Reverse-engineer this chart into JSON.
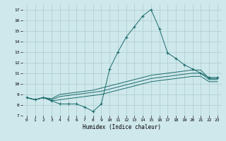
{
  "title": "",
  "xlabel": "Humidex (Indice chaleur)",
  "ylabel": "",
  "bg_color": "#cfe8ec",
  "grid_color": "#aacccc",
  "line_color": "#1a6b6b",
  "xlim": [
    -0.5,
    23.5
  ],
  "ylim": [
    7,
    17.5
  ],
  "xticks": [
    0,
    1,
    2,
    3,
    4,
    5,
    6,
    7,
    8,
    9,
    10,
    11,
    12,
    13,
    14,
    15,
    16,
    17,
    18,
    19,
    20,
    21,
    22,
    23
  ],
  "yticks": [
    7,
    8,
    9,
    10,
    11,
    12,
    13,
    14,
    15,
    16,
    17
  ],
  "lines": [
    {
      "x": [
        0,
        1,
        2,
        3,
        4,
        5,
        6,
        7,
        8,
        9,
        10,
        11,
        12,
        13,
        14,
        15,
        16,
        17,
        18,
        19,
        20,
        21,
        22,
        23
      ],
      "y": [
        8.7,
        8.5,
        8.7,
        8.4,
        8.1,
        8.1,
        8.1,
        7.8,
        7.4,
        8.1,
        11.4,
        13.0,
        14.4,
        15.4,
        16.4,
        17.0,
        15.2,
        12.9,
        12.4,
        11.8,
        11.4,
        11.0,
        10.6,
        10.6
      ],
      "marker": "+"
    },
    {
      "x": [
        0,
        1,
        2,
        3,
        4,
        5,
        6,
        7,
        8,
        9,
        10,
        11,
        12,
        13,
        14,
        15,
        16,
        17,
        18,
        19,
        20,
        21,
        22,
        23
      ],
      "y": [
        8.7,
        8.5,
        8.7,
        8.6,
        9.0,
        9.1,
        9.2,
        9.3,
        9.4,
        9.6,
        9.8,
        10.0,
        10.2,
        10.4,
        10.6,
        10.8,
        10.9,
        11.0,
        11.1,
        11.2,
        11.3,
        11.3,
        10.5,
        10.5
      ],
      "marker": null
    },
    {
      "x": [
        0,
        1,
        2,
        3,
        4,
        5,
        6,
        7,
        8,
        9,
        10,
        11,
        12,
        13,
        14,
        15,
        16,
        17,
        18,
        19,
        20,
        21,
        22,
        23
      ],
      "y": [
        8.7,
        8.5,
        8.7,
        8.5,
        8.8,
        8.9,
        9.0,
        9.1,
        9.2,
        9.3,
        9.5,
        9.7,
        9.9,
        10.1,
        10.3,
        10.5,
        10.6,
        10.7,
        10.8,
        10.9,
        11.0,
        11.0,
        10.4,
        10.4
      ],
      "marker": null
    },
    {
      "x": [
        0,
        1,
        2,
        3,
        4,
        5,
        6,
        7,
        8,
        9,
        10,
        11,
        12,
        13,
        14,
        15,
        16,
        17,
        18,
        19,
        20,
        21,
        22,
        23
      ],
      "y": [
        8.7,
        8.5,
        8.7,
        8.4,
        8.5,
        8.6,
        8.7,
        8.8,
        8.9,
        9.0,
        9.2,
        9.4,
        9.6,
        9.8,
        10.0,
        10.2,
        10.3,
        10.4,
        10.5,
        10.6,
        10.7,
        10.7,
        10.2,
        10.2
      ],
      "marker": null
    }
  ]
}
